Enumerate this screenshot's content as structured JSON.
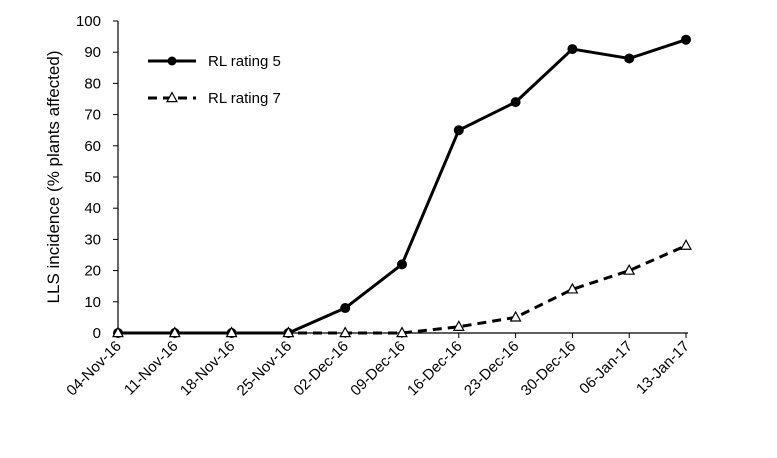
{
  "chart_data": {
    "type": "line",
    "categories": [
      "04-Nov-16",
      "11-Nov-16",
      "18-Nov-16",
      "25-Nov-16",
      "02-Dec-16",
      "09-Dec-16",
      "16-Dec-16",
      "23-Dec-16",
      "30-Dec-16",
      "06-Jan-17",
      "13-Jan-17"
    ],
    "ylabel": "LLS incidence (% plants affected)",
    "xlabel": "",
    "ylim": [
      0,
      100
    ],
    "yticks": [
      0,
      10,
      20,
      30,
      40,
      50,
      60,
      70,
      80,
      90,
      100
    ],
    "grid": false,
    "legend_position": "top-left",
    "series": [
      {
        "name": "RL rating 5",
        "values": [
          0,
          0,
          0,
          0,
          8,
          22,
          65,
          74,
          91,
          88,
          94
        ],
        "marker": "filled-circle",
        "line_style": "solid",
        "color": "#000000"
      },
      {
        "name": "RL rating 7",
        "values": [
          0,
          0,
          0,
          0,
          0,
          0,
          2,
          5,
          14,
          20,
          28
        ],
        "marker": "open-triangle",
        "line_style": "dashed",
        "color": "#000000"
      }
    ]
  }
}
